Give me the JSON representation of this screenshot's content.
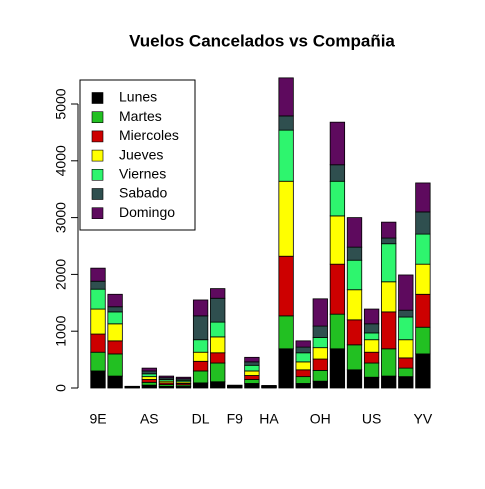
{
  "chart_data": {
    "type": "stacked_bar",
    "title": "Vuelos Cancelados vs Compañia",
    "categories": [
      "9E",
      null,
      null,
      "AS",
      null,
      null,
      "DL",
      null,
      "F9",
      null,
      "HA",
      null,
      null,
      "OH",
      null,
      null,
      "US",
      null,
      null,
      "YV"
    ],
    "series": [
      {
        "name": "Lunes",
        "color": "#000000",
        "values": [
          300,
          210,
          5,
          50,
          30,
          27,
          90,
          110,
          7,
          80,
          6,
          690,
          80,
          120,
          690,
          320,
          190,
          210,
          200,
          600
        ]
      },
      {
        "name": "Martes",
        "color": "#22c022",
        "values": [
          330,
          390,
          4,
          50,
          30,
          27,
          210,
          330,
          7,
          70,
          6,
          580,
          120,
          190,
          610,
          440,
          250,
          480,
          150,
          470
        ]
      },
      {
        "name": "Miercoles",
        "color": "#cd0000",
        "values": [
          320,
          230,
          4,
          50,
          30,
          27,
          170,
          180,
          7,
          70,
          6,
          1050,
          120,
          200,
          880,
          440,
          190,
          650,
          180,
          580
        ]
      },
      {
        "name": "Jueves",
        "color": "#ffff00",
        "values": [
          440,
          300,
          4,
          50,
          30,
          27,
          160,
          280,
          7,
          80,
          6,
          1320,
          140,
          200,
          850,
          530,
          220,
          530,
          320,
          530
        ]
      },
      {
        "name": "Viernes",
        "color": "#2ef56e",
        "values": [
          350,
          210,
          5,
          50,
          30,
          27,
          220,
          260,
          7,
          100,
          7,
          900,
          160,
          180,
          610,
          520,
          120,
          670,
          400,
          530
        ]
      },
      {
        "name": "Sabado",
        "color": "#2f4f4f",
        "values": [
          140,
          90,
          3,
          50,
          30,
          27,
          420,
          420,
          7,
          60,
          6,
          250,
          100,
          200,
          290,
          230,
          160,
          100,
          120,
          390
        ]
      },
      {
        "name": "Domingo",
        "color": "#5e0a5e",
        "values": [
          230,
          220,
          5,
          50,
          30,
          28,
          280,
          170,
          8,
          80,
          8,
          670,
          110,
          480,
          750,
          520,
          260,
          280,
          620,
          510
        ]
      }
    ],
    "ylim": [
      0,
      5500
    ],
    "yticks": [
      0,
      1000,
      2000,
      3000,
      4000,
      5000
    ],
    "legend": "top-left"
  }
}
